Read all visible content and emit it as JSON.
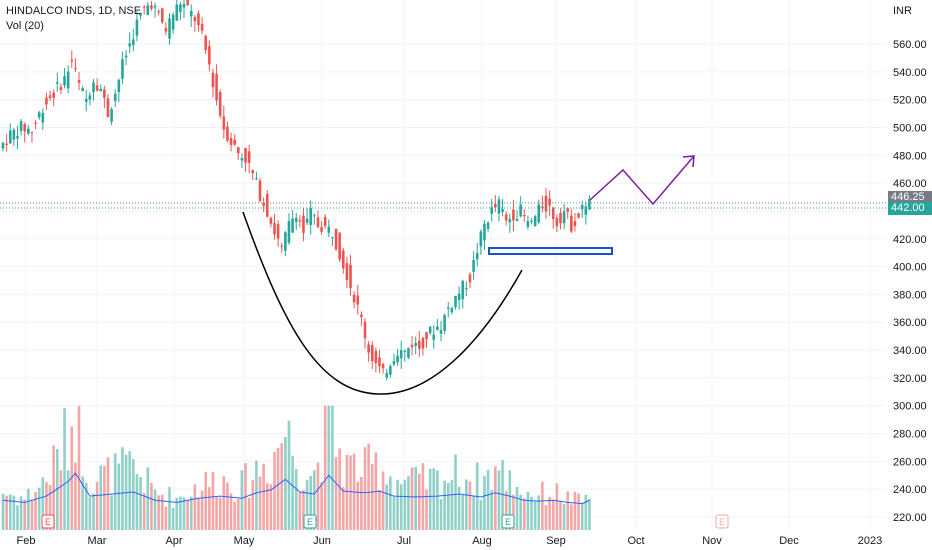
{
  "legend": {
    "symbol": "HINDALCO INDS, 1D, NSE",
    "volume_label": "Vol (20)"
  },
  "currency": "INR",
  "last_price_tag": "446.25",
  "prev_price_tag": "442.00",
  "colors": {
    "up": "#26a69a",
    "down": "#ef5350",
    "vol_up": "#8fd0c8",
    "vol_down": "#f4a6a6",
    "vol_ma": "#2962ff",
    "cup": "#000000",
    "projection": "#7b1fa2",
    "handle_box": "#1e50d8",
    "last_tag_bg": "#787b86",
    "prev_tag_bg": "#26a69a"
  },
  "chart_data": {
    "type": "candlestick",
    "y_axis_ticks": [
      "560.00",
      "540.00",
      "520.00",
      "500.00",
      "480.00",
      "460.00",
      "440.00",
      "420.00",
      "400.00",
      "380.00",
      "360.00",
      "340.00",
      "320.00",
      "300.00",
      "280.00",
      "260.00",
      "240.00",
      "220.00"
    ],
    "x_axis_ticks": [
      "Feb",
      "Mar",
      "Apr",
      "May",
      "Jun",
      "Jul",
      "Aug",
      "Sep",
      "Oct",
      "Nov",
      "Dec",
      "2023"
    ],
    "ylim": [
      215,
      580
    ],
    "earnings_markers": [
      "E",
      "E",
      "E",
      "E"
    ],
    "price_path": [
      [
        0,
        485
      ],
      [
        3,
        495
      ],
      [
        6,
        500
      ],
      [
        9,
        498
      ],
      [
        12,
        515
      ],
      [
        15,
        525
      ],
      [
        18,
        535
      ],
      [
        20,
        548
      ],
      [
        22,
        530
      ],
      [
        24,
        520
      ],
      [
        26,
        535
      ],
      [
        28,
        528
      ],
      [
        30,
        510
      ],
      [
        32,
        525
      ],
      [
        34,
        545
      ],
      [
        36,
        560
      ],
      [
        38,
        575
      ],
      [
        40,
        585
      ],
      [
        42,
        590
      ],
      [
        44,
        580
      ],
      [
        46,
        570
      ],
      [
        48,
        582
      ],
      [
        50,
        590
      ],
      [
        52,
        585
      ],
      [
        54,
        578
      ],
      [
        56,
        565
      ],
      [
        58,
        545
      ],
      [
        60,
        520
      ],
      [
        62,
        500
      ],
      [
        64,
        490
      ],
      [
        66,
        482
      ],
      [
        68,
        478
      ],
      [
        70,
        466
      ],
      [
        72,
        452
      ],
      [
        74,
        440
      ],
      [
        76,
        425
      ],
      [
        78,
        412
      ],
      [
        80,
        430
      ],
      [
        82,
        440
      ],
      [
        84,
        425
      ],
      [
        86,
        438
      ],
      [
        88,
        430
      ],
      [
        90,
        428
      ],
      [
        92,
        425
      ],
      [
        94,
        410
      ],
      [
        96,
        395
      ],
      [
        98,
        378
      ],
      [
        100,
        362
      ],
      [
        102,
        340
      ],
      [
        104,
        330
      ],
      [
        106,
        322
      ],
      [
        108,
        332
      ],
      [
        110,
        340
      ],
      [
        112,
        338
      ],
      [
        114,
        345
      ],
      [
        116,
        342
      ],
      [
        118,
        350
      ],
      [
        120,
        355
      ],
      [
        122,
        358
      ],
      [
        124,
        370
      ],
      [
        126,
        378
      ],
      [
        128,
        385
      ],
      [
        130,
        392
      ],
      [
        132,
        412
      ],
      [
        134,
        430
      ],
      [
        136,
        440
      ],
      [
        138,
        445
      ],
      [
        140,
        432
      ],
      [
        142,
        438
      ],
      [
        144,
        440
      ],
      [
        146,
        430
      ],
      [
        148,
        435
      ],
      [
        150,
        445
      ],
      [
        152,
        442
      ],
      [
        154,
        432
      ],
      [
        156,
        440
      ],
      [
        158,
        430
      ],
      [
        160,
        436
      ],
      [
        162,
        446
      ]
    ],
    "volume_path": [
      [
        0,
        240
      ],
      [
        6,
        235
      ],
      [
        12,
        250
      ],
      [
        18,
        285
      ],
      [
        20,
        305
      ],
      [
        24,
        250
      ],
      [
        30,
        255
      ],
      [
        36,
        260
      ],
      [
        42,
        240
      ],
      [
        48,
        235
      ],
      [
        54,
        245
      ],
      [
        60,
        250
      ],
      [
        66,
        245
      ],
      [
        70,
        258
      ],
      [
        74,
        265
      ],
      [
        78,
        290
      ],
      [
        82,
        260
      ],
      [
        86,
        255
      ],
      [
        90,
        300
      ],
      [
        94,
        262
      ],
      [
        100,
        258
      ],
      [
        104,
        262
      ],
      [
        108,
        250
      ],
      [
        114,
        248
      ],
      [
        120,
        250
      ],
      [
        126,
        255
      ],
      [
        132,
        248
      ],
      [
        136,
        258
      ],
      [
        140,
        250
      ],
      [
        144,
        240
      ],
      [
        148,
        238
      ],
      [
        152,
        240
      ],
      [
        156,
        235
      ],
      [
        160,
        232
      ],
      [
        162,
        240
      ]
    ]
  },
  "overlays": {
    "cup_curve": "black U-shaped cup",
    "handle_box": "blue rectangle",
    "projection": "purple zig-zag arrow"
  }
}
